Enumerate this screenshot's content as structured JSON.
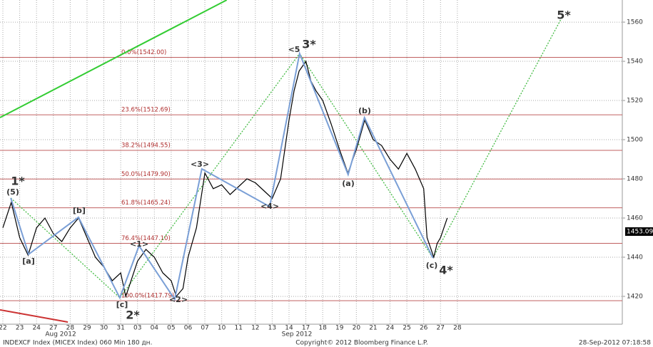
{
  "chart_data": {
    "type": "line",
    "color": "#000000",
    "x": [
      0,
      0.5,
      1,
      1.5,
      2,
      2.5,
      3,
      3.5,
      4,
      4.5,
      5,
      5.5,
      6,
      6.5,
      7,
      7.3,
      7.5,
      8,
      8.5,
      9,
      9.5,
      10,
      10.3,
      10.7,
      11,
      11.5,
      12,
      12.5,
      13,
      13.5,
      14,
      14.5,
      15,
      15.5,
      16,
      16.5,
      17,
      17.3,
      17.6,
      18,
      18.3,
      18.6,
      19,
      19.5,
      20,
      20.5,
      21,
      21.5,
      22,
      22.5,
      23,
      23.5,
      24,
      24.5,
      25,
      25.2,
      25.4,
      25.6,
      25.8,
      26,
      26.2,
      26.4
    ],
    "values": [
      1455,
      1468,
      1450,
      1441,
      1455,
      1460,
      1452,
      1448,
      1455,
      1460,
      1450,
      1440,
      1435,
      1428,
      1432,
      1420,
      1425,
      1438,
      1444,
      1440,
      1432,
      1428,
      1420,
      1424,
      1440,
      1455,
      1483,
      1475,
      1477,
      1472,
      1476,
      1480,
      1478,
      1474,
      1470,
      1480,
      1510,
      1525,
      1535,
      1540,
      1530,
      1525,
      1520,
      1508,
      1495,
      1483,
      1495,
      1510,
      1500,
      1497,
      1490,
      1485,
      1493,
      1485,
      1475,
      1450,
      1445,
      1440,
      1447,
      1450,
      1455,
      1460
    ],
    "xlim": [
      -0.17,
      36.8
    ],
    "ylim": [
      1405.8,
      1571.3
    ],
    "yticks": [
      1420,
      1440,
      1460,
      1480,
      1500,
      1520,
      1540,
      1560
    ],
    "xticks": [
      {
        "value": 0,
        "label": "22"
      },
      {
        "value": 1,
        "label": "23"
      },
      {
        "value": 2,
        "label": "24"
      },
      {
        "value": 3,
        "label": "27"
      },
      {
        "value": 4,
        "label": "28"
      },
      {
        "value": 5,
        "label": "29"
      },
      {
        "value": 6,
        "label": "30"
      },
      {
        "value": 7,
        "label": "31"
      },
      {
        "value": 8,
        "label": "03"
      },
      {
        "value": 9,
        "label": "04"
      },
      {
        "value": 10,
        "label": "05"
      },
      {
        "value": 11,
        "label": "06"
      },
      {
        "value": 12,
        "label": "07"
      },
      {
        "value": 13,
        "label": "10"
      },
      {
        "value": 14,
        "label": "11"
      },
      {
        "value": 15,
        "label": "12"
      },
      {
        "value": 16,
        "label": "13"
      },
      {
        "value": 17,
        "label": "14"
      },
      {
        "value": 18,
        "label": "17"
      },
      {
        "value": 19,
        "label": "18"
      },
      {
        "value": 20,
        "label": "19"
      },
      {
        "value": 21,
        "label": "20"
      },
      {
        "value": 22,
        "label": "21"
      },
      {
        "value": 23,
        "label": "24"
      },
      {
        "value": 24,
        "label": "25"
      },
      {
        "value": 25,
        "label": "26"
      },
      {
        "value": 26,
        "label": "27"
      },
      {
        "value": 27,
        "label": "28"
      }
    ],
    "grid": true,
    "months": [
      "Aug 2012",
      "Sep 2012"
    ],
    "fib_levels": [
      {
        "value": 1542,
        "label": "0.0%(1542.00)"
      },
      {
        "value": 1512.69,
        "label": "23.6%(1512.69)"
      },
      {
        "value": 1494.55,
        "label": "38.2%(1494.55)"
      },
      {
        "value": 1479.9,
        "label": "50.0%(1479.90)"
      },
      {
        "value": 1465.24,
        "label": "61.8%(1465.24)"
      },
      {
        "value": 1447.1,
        "label": "76.4%(1447.10)"
      },
      {
        "value": 1417.79,
        "label": "100.0%(1417.79)"
      }
    ],
    "fib_color": "#c06060",
    "wave": {
      "color": "#7a9fd6",
      "x": [
        0.47,
        1.53,
        4.49,
        6.95,
        8.09,
        10.21,
        11.82,
        15.85,
        17.63,
        20.51,
        21.48,
        25.55
      ],
      "y": [
        1470.2,
        1441.5,
        1460.4,
        1419.3,
        1445.8,
        1418.5,
        1485.1,
        1465.8,
        1544,
        1482.2,
        1511.3,
        1439.6
      ]
    },
    "projection": {
      "color": "#44bb44",
      "x": [
        0.47,
        6.95,
        17.63,
        25.55,
        33.2
      ],
      "y": [
        1470.2,
        1419.3,
        1544,
        1439.6,
        1562.2
      ]
    },
    "trendlines": [
      {
        "color": "#33cc33",
        "x": [
          -0.17,
          13.3
        ],
        "y": [
          1511.3,
          1571.3
        ]
      },
      {
        "color": "#cc3333",
        "x": [
          -0.17,
          3.86
        ],
        "y": [
          1413.1,
          1406.9
        ]
      }
    ],
    "annotations": [
      {
        "text": "1*",
        "color": "#44aa44"
      },
      {
        "text": "(5)",
        "color": "#6a8fd0"
      },
      {
        "text": "[a]",
        "color": "#cc2222"
      },
      {
        "text": "[b]",
        "color": "#cc2222"
      },
      {
        "text": "[c]",
        "color": "#cc2222"
      },
      {
        "text": "2*",
        "color": "#44aa44"
      },
      {
        "text": "<1>",
        "color": "#6a8fd0"
      },
      {
        "text": "<2>",
        "color": "#6a8fd0"
      },
      {
        "text": "<3>",
        "color": "#6a8fd0"
      },
      {
        "text": "<4>",
        "color": "#6a8fd0"
      },
      {
        "text": "<5",
        "color": "#6a8fd0"
      },
      {
        "text": "3*",
        "color": "#44aa44"
      },
      {
        "text": "(a)",
        "color": "#cc2222"
      },
      {
        "text": "(b)",
        "color": "#cc2222"
      },
      {
        "text": "(c)",
        "color": "#cc2222"
      },
      {
        "text": "4*",
        "color": "#44aa44"
      },
      {
        "text": "5*",
        "color": "#44aa44"
      }
    ],
    "last_price": 1453.09,
    "footer_left": "INDEXCF Index (MICEX Index) 060 Min 180 дн.",
    "footer_center": "Copyright© 2012 Bloomberg Finance L.P.",
    "footer_right": "28-Sep-2012 07:18:58"
  }
}
